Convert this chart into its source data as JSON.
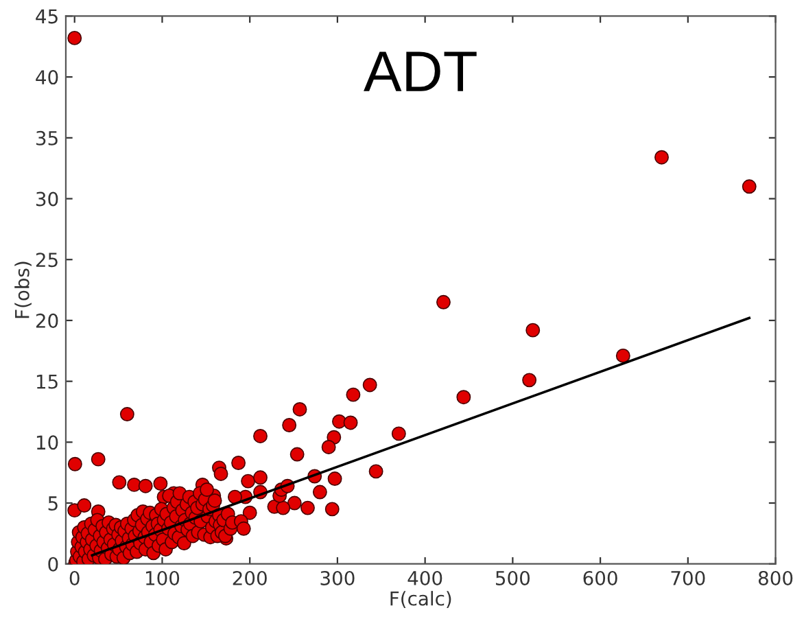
{
  "chart_data": {
    "type": "scatter",
    "xlabel": "F(calc)",
    "ylabel": "F(obs)",
    "annotations": [
      "ADT"
    ],
    "xlim": [
      -10,
      800
    ],
    "ylim": [
      0,
      45
    ],
    "xticks": [
      0,
      100,
      200,
      300,
      400,
      500,
      600,
      700,
      800
    ],
    "yticks": [
      0,
      5,
      10,
      15,
      20,
      25,
      30,
      35,
      40,
      45
    ],
    "grid": false,
    "marker": "circle",
    "series": [
      {
        "color": "#e00000",
        "x": [
          0,
          670,
          770,
          421,
          523,
          626,
          519,
          444,
          337,
          318,
          302,
          315,
          296,
          290,
          370,
          344,
          297,
          280,
          294,
          274,
          60,
          0.5,
          27,
          0,
          11,
          27,
          51,
          68,
          81,
          98,
          212,
          245,
          257,
          254,
          187,
          165,
          167,
          198,
          212,
          251,
          266,
          228,
          238,
          200,
          212,
          234,
          236,
          243,
          195,
          173,
          146,
          159,
          113,
          102,
          1,
          2,
          3,
          4,
          5,
          6,
          8,
          9,
          10,
          11,
          12,
          14,
          15,
          16,
          18,
          19,
          20,
          22,
          23,
          25,
          26,
          28,
          29,
          30,
          32,
          33,
          35,
          36,
          38,
          39,
          41,
          42,
          44,
          45,
          47,
          48,
          50,
          51,
          53,
          54,
          56,
          57,
          59,
          60,
          62,
          63,
          65,
          66,
          68,
          69,
          71,
          72,
          74,
          75,
          77,
          78,
          80,
          81,
          83,
          84,
          86,
          87,
          89,
          90,
          92,
          93,
          95,
          96,
          98,
          99,
          101,
          102,
          104,
          105,
          107,
          108,
          110,
          111,
          113,
          114,
          116,
          117,
          119,
          120,
          122,
          123,
          125,
          126,
          128,
          129,
          131,
          132,
          134,
          135,
          137,
          138,
          140,
          141,
          143,
          144,
          146,
          148,
          149,
          151,
          152,
          154,
          155,
          157,
          158,
          160,
          161,
          163,
          165,
          166,
          168,
          170,
          172,
          175,
          178,
          180,
          183,
          190,
          193
        ],
        "values": [
          43.2,
          33.4,
          31.0,
          21.5,
          19.2,
          17.1,
          15.1,
          13.7,
          14.7,
          13.9,
          11.7,
          11.6,
          10.4,
          9.6,
          10.7,
          7.6,
          7.0,
          5.9,
          4.5,
          7.2,
          12.3,
          8.2,
          8.6,
          4.4,
          4.8,
          4.3,
          6.7,
          6.5,
          6.4,
          6.6,
          10.5,
          11.4,
          12.7,
          9.0,
          8.3,
          7.9,
          7.4,
          6.8,
          7.1,
          5.0,
          4.6,
          4.7,
          4.6,
          4.2,
          5.9,
          5.6,
          6.1,
          6.4,
          5.5,
          2.1,
          6.5,
          5.6,
          5.8,
          5.5,
          0.1,
          0.3,
          1.0,
          1.8,
          2.6,
          0.6,
          1.4,
          2.2,
          0.2,
          3.0,
          1.0,
          1.8,
          2.5,
          0.4,
          1.2,
          3.3,
          2.0,
          0.7,
          2.8,
          1.5,
          3.6,
          0.5,
          2.3,
          1.1,
          3.1,
          1.8,
          0.4,
          2.6,
          1.3,
          3.4,
          2.0,
          0.8,
          2.9,
          1.6,
          3.2,
          0.6,
          2.4,
          1.2,
          3.0,
          1.9,
          0.5,
          2.7,
          1.4,
          3.3,
          2.1,
          0.9,
          2.9,
          1.6,
          3.6,
          2.3,
          1.0,
          4.0,
          2.7,
          1.7,
          3.2,
          4.3,
          2.2,
          1.2,
          3.7,
          2.6,
          4.2,
          1.8,
          3.1,
          0.9,
          2.4,
          4.0,
          3.3,
          1.5,
          2.8,
          4.5,
          2.0,
          3.6,
          1.2,
          4.1,
          2.9,
          5.6,
          3.4,
          1.8,
          4.6,
          2.5,
          3.9,
          5.1,
          2.2,
          5.8,
          3.1,
          4.4,
          1.7,
          3.6,
          4.9,
          2.8,
          5.5,
          3.3,
          4.2,
          2.3,
          5.1,
          3.8,
          4.6,
          2.6,
          5.8,
          3.5,
          4.9,
          2.4,
          5.3,
          6.1,
          3.9,
          4.5,
          2.2,
          3.0,
          4.8,
          5.2,
          3.5,
          2.3,
          4.0,
          3.2,
          2.6,
          3.6,
          2.3,
          4.1,
          2.9,
          3.4,
          5.5,
          3.5,
          2.9
        ]
      },
      {
        "type": "line",
        "marker": "none",
        "color": "#000000",
        "x": [
          20,
          770
        ],
        "values": [
          0.7,
          20.2
        ]
      }
    ]
  }
}
